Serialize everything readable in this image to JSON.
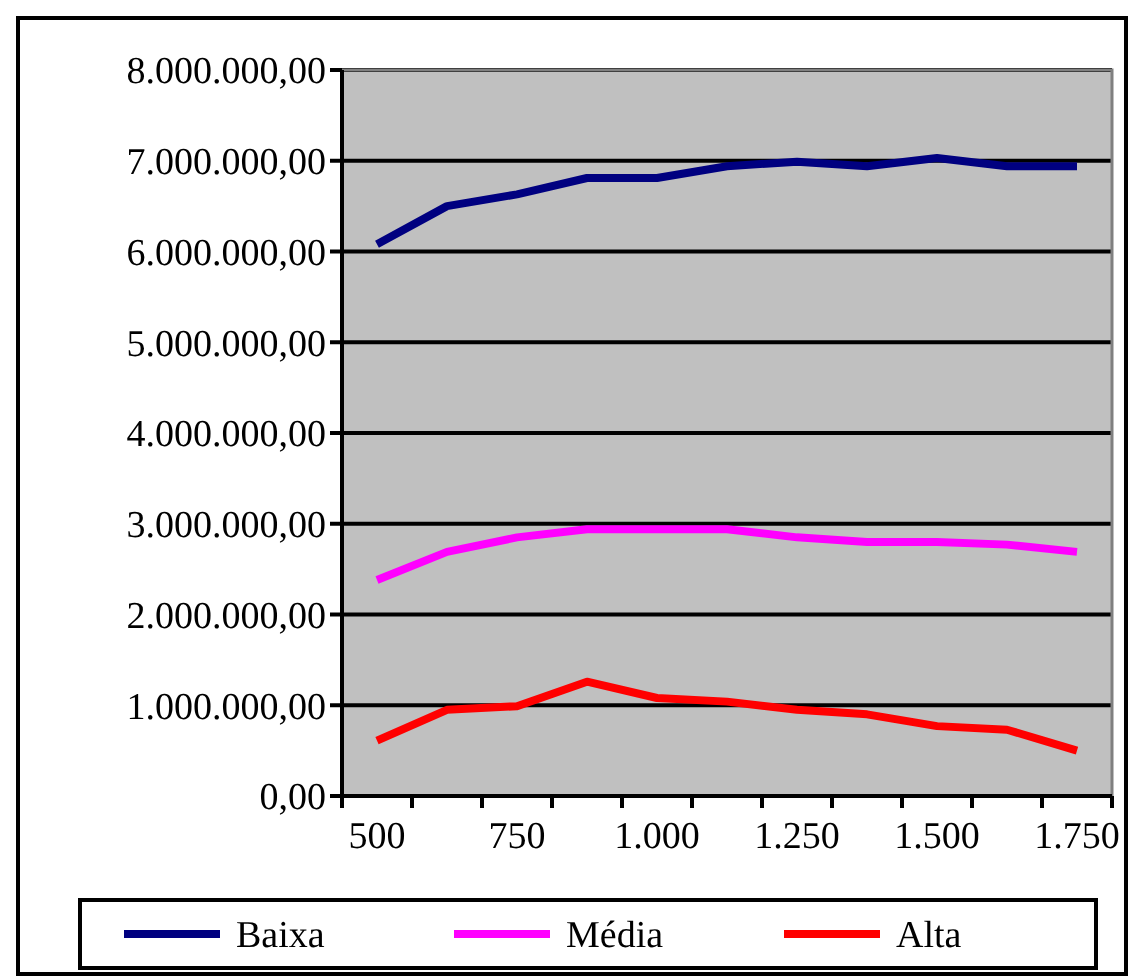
{
  "chart_data": {
    "type": "line",
    "categories": [
      "500",
      null,
      "750",
      null,
      "1.000",
      null,
      "1.250",
      null,
      "1.500",
      null,
      "1.750"
    ],
    "series": [
      {
        "name": "Baixa",
        "color": "#000080",
        "values": [
          6080000,
          6500000,
          6630000,
          6810000,
          6810000,
          6940000,
          6990000,
          6940000,
          7030000,
          6940000,
          6940000
        ]
      },
      {
        "name": "Média",
        "color": "#ff00ff",
        "values": [
          2380000,
          2690000,
          2850000,
          2940000,
          2940000,
          2940000,
          2850000,
          2800000,
          2800000,
          2770000,
          2690000
        ]
      },
      {
        "name": "Alta",
        "color": "#ff0000",
        "values": [
          610000,
          950000,
          990000,
          1260000,
          1080000,
          1040000,
          950000,
          900000,
          770000,
          730000,
          500000
        ]
      }
    ],
    "ylim": [
      0,
      8000000
    ],
    "yticks": [
      {
        "value": 0,
        "label": "0,00"
      },
      {
        "value": 1000000,
        "label": "1.000.000,00"
      },
      {
        "value": 2000000,
        "label": "2.000.000,00"
      },
      {
        "value": 3000000,
        "label": "3.000.000,00"
      },
      {
        "value": 4000000,
        "label": "4.000.000,00"
      },
      {
        "value": 5000000,
        "label": "5.000.000,00"
      },
      {
        "value": 6000000,
        "label": "6.000.000,00"
      },
      {
        "value": 7000000,
        "label": "7.000.000,00"
      },
      {
        "value": 8000000,
        "label": "8.000.000,00"
      }
    ],
    "grid": "y",
    "legend": "bottom",
    "marker": "none",
    "line_style": "solid"
  }
}
